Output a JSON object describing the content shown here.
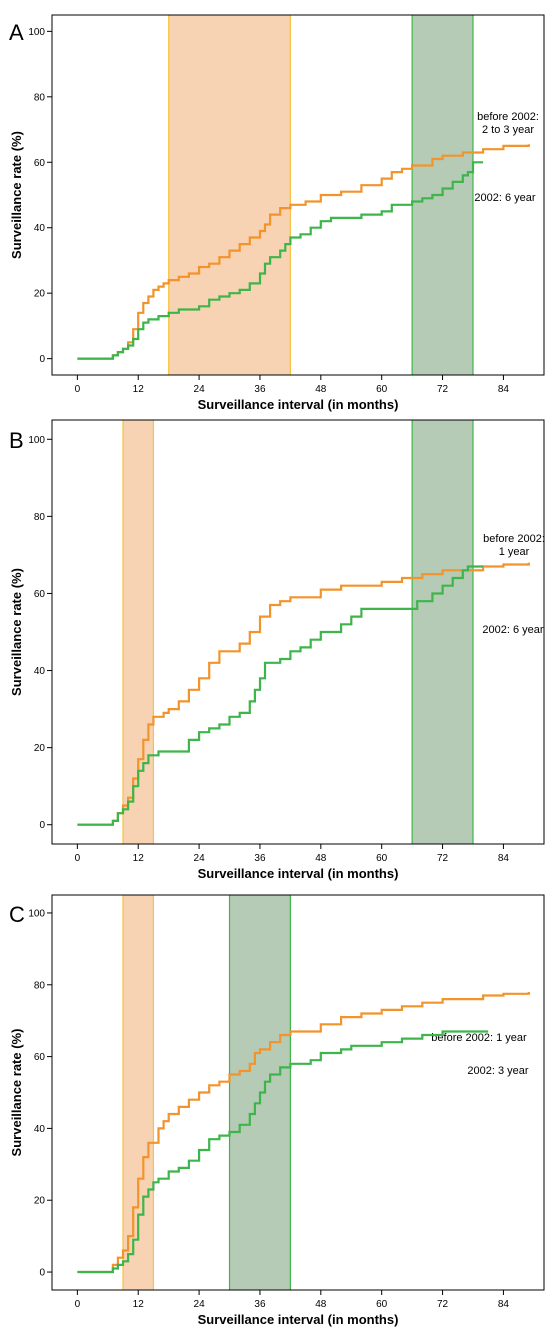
{
  "colors": {
    "orange_line": "#F2932B",
    "green_line": "#3DB54A",
    "orange_band_fill": "#F7D3B3",
    "orange_band_edge": "#F5C244",
    "green_band_fill": "#B5CBB6",
    "green_band_edge": "#3DB54A"
  },
  "chart_data": [
    {
      "type": "line",
      "panel": "A",
      "xlabel": "Surveillance interval (in months)",
      "ylabel": "Surveillance rate (%)",
      "xlim": [
        -5,
        92
      ],
      "ylim": [
        -5,
        105
      ],
      "xticks": [
        0,
        12,
        24,
        36,
        48,
        60,
        72,
        84
      ],
      "yticks": [
        0,
        20,
        40,
        60,
        80,
        100
      ],
      "bands": [
        {
          "color": "orange",
          "x": [
            18,
            42
          ]
        },
        {
          "color": "green",
          "x": [
            66,
            78
          ]
        }
      ],
      "series": [
        {
          "name": "before 2002: 2 to 3 year",
          "label_lines": [
            "before 2002:",
            "2 to 3 year"
          ],
          "color": "orange",
          "points": [
            [
              0,
              0
            ],
            [
              6,
              0
            ],
            [
              7,
              1
            ],
            [
              8,
              2
            ],
            [
              9,
              3
            ],
            [
              10,
              5
            ],
            [
              11,
              9
            ],
            [
              12,
              14
            ],
            [
              13,
              17
            ],
            [
              14,
              19
            ],
            [
              15,
              21
            ],
            [
              16,
              22
            ],
            [
              17,
              23
            ],
            [
              18,
              24
            ],
            [
              20,
              25
            ],
            [
              22,
              26
            ],
            [
              24,
              28
            ],
            [
              26,
              29
            ],
            [
              28,
              31
            ],
            [
              30,
              33
            ],
            [
              32,
              35
            ],
            [
              34,
              37
            ],
            [
              36,
              39
            ],
            [
              37,
              41
            ],
            [
              38,
              44
            ],
            [
              40,
              46
            ],
            [
              42,
              47
            ],
            [
              45,
              48
            ],
            [
              48,
              50
            ],
            [
              52,
              51
            ],
            [
              56,
              53
            ],
            [
              60,
              55
            ],
            [
              62,
              57
            ],
            [
              64,
              58
            ],
            [
              66,
              59
            ],
            [
              70,
              61
            ],
            [
              72,
              62
            ],
            [
              76,
              63
            ],
            [
              80,
              64
            ],
            [
              84,
              65
            ],
            [
              89,
              65.5
            ]
          ]
        },
        {
          "name": "2002: 6 year",
          "label_lines": [
            "2002: 6 year"
          ],
          "color": "green",
          "points": [
            [
              0,
              0
            ],
            [
              6,
              0
            ],
            [
              7,
              1
            ],
            [
              8,
              2
            ],
            [
              9,
              3
            ],
            [
              10,
              4
            ],
            [
              11,
              6
            ],
            [
              12,
              9
            ],
            [
              13,
              11
            ],
            [
              14,
              12
            ],
            [
              16,
              13
            ],
            [
              18,
              14
            ],
            [
              20,
              15
            ],
            [
              24,
              16
            ],
            [
              26,
              18
            ],
            [
              28,
              19
            ],
            [
              30,
              20
            ],
            [
              32,
              21
            ],
            [
              34,
              23
            ],
            [
              36,
              26
            ],
            [
              37,
              29
            ],
            [
              38,
              31
            ],
            [
              40,
              33
            ],
            [
              41,
              35
            ],
            [
              42,
              37
            ],
            [
              44,
              38
            ],
            [
              46,
              40
            ],
            [
              48,
              42
            ],
            [
              50,
              43
            ],
            [
              54,
              43
            ],
            [
              56,
              44
            ],
            [
              60,
              45
            ],
            [
              62,
              47
            ],
            [
              66,
              48
            ],
            [
              68,
              49
            ],
            [
              70,
              50
            ],
            [
              72,
              52
            ],
            [
              74,
              54
            ],
            [
              76,
              56
            ],
            [
              77,
              57
            ],
            [
              78,
              60
            ],
            [
              80,
              60
            ]
          ]
        }
      ]
    },
    {
      "type": "line",
      "panel": "B",
      "xlabel": "Surveillance interval (in months)",
      "ylabel": "Surveillance rate (%)",
      "xlim": [
        -5,
        92
      ],
      "ylim": [
        -5,
        105
      ],
      "xticks": [
        0,
        12,
        24,
        36,
        48,
        60,
        72,
        84
      ],
      "yticks": [
        0,
        20,
        40,
        60,
        80,
        100
      ],
      "bands": [
        {
          "color": "orange",
          "x": [
            9,
            15
          ]
        },
        {
          "color": "green",
          "x": [
            66,
            78
          ]
        }
      ],
      "series": [
        {
          "name": "before 2002: 1 year",
          "label_lines": [
            "before 2002:",
            "1 year"
          ],
          "color": "orange",
          "points": [
            [
              0,
              0
            ],
            [
              6,
              0
            ],
            [
              7,
              1
            ],
            [
              8,
              3
            ],
            [
              9,
              5
            ],
            [
              10,
              7
            ],
            [
              11,
              12
            ],
            [
              12,
              17
            ],
            [
              13,
              22
            ],
            [
              14,
              26
            ],
            [
              15,
              28
            ],
            [
              17,
              29
            ],
            [
              18,
              30
            ],
            [
              20,
              32
            ],
            [
              22,
              35
            ],
            [
              24,
              38
            ],
            [
              26,
              42
            ],
            [
              28,
              45
            ],
            [
              30,
              45
            ],
            [
              32,
              47
            ],
            [
              34,
              50
            ],
            [
              36,
              54
            ],
            [
              38,
              57
            ],
            [
              40,
              58
            ],
            [
              42,
              59
            ],
            [
              48,
              61
            ],
            [
              52,
              62
            ],
            [
              56,
              62
            ],
            [
              60,
              63
            ],
            [
              64,
              64
            ],
            [
              68,
              65
            ],
            [
              72,
              66
            ],
            [
              76,
              66
            ],
            [
              80,
              67
            ],
            [
              84,
              67.5
            ],
            [
              89,
              68
            ]
          ]
        },
        {
          "name": "2002: 6 year",
          "label_lines": [
            "2002: 6 year"
          ],
          "color": "green",
          "points": [
            [
              0,
              0
            ],
            [
              6,
              0
            ],
            [
              7,
              1
            ],
            [
              8,
              3
            ],
            [
              9,
              4
            ],
            [
              10,
              6
            ],
            [
              11,
              10
            ],
            [
              12,
              14
            ],
            [
              13,
              16
            ],
            [
              14,
              18
            ],
            [
              16,
              19
            ],
            [
              20,
              19
            ],
            [
              22,
              22
            ],
            [
              24,
              24
            ],
            [
              26,
              25
            ],
            [
              28,
              26
            ],
            [
              30,
              28
            ],
            [
              32,
              29
            ],
            [
              34,
              32
            ],
            [
              35,
              35
            ],
            [
              36,
              38
            ],
            [
              37,
              42
            ],
            [
              40,
              43
            ],
            [
              42,
              45
            ],
            [
              44,
              46
            ],
            [
              46,
              48
            ],
            [
              48,
              50
            ],
            [
              52,
              52
            ],
            [
              54,
              54
            ],
            [
              56,
              56
            ],
            [
              60,
              56
            ],
            [
              66,
              56
            ],
            [
              67,
              58
            ],
            [
              70,
              60
            ],
            [
              72,
              62
            ],
            [
              74,
              64
            ],
            [
              76,
              66
            ],
            [
              77,
              67
            ],
            [
              80,
              67
            ]
          ]
        }
      ]
    },
    {
      "type": "line",
      "panel": "C",
      "xlabel": "Surveillance interval (in months)",
      "ylabel": "Surveillance rate (%)",
      "xlim": [
        -5,
        92
      ],
      "ylim": [
        -5,
        105
      ],
      "xticks": [
        0,
        12,
        24,
        36,
        48,
        60,
        72,
        84
      ],
      "yticks": [
        0,
        20,
        40,
        60,
        80,
        100
      ],
      "bands": [
        {
          "color": "orange",
          "x": [
            9,
            15
          ]
        },
        {
          "color": "green",
          "x": [
            30,
            42
          ]
        }
      ],
      "series": [
        {
          "name": "before 2002: 1 year",
          "label_lines": [
            "before 2002: 1 year"
          ],
          "color": "orange",
          "points": [
            [
              0,
              0
            ],
            [
              6,
              0
            ],
            [
              7,
              2
            ],
            [
              8,
              4
            ],
            [
              9,
              6
            ],
            [
              10,
              10
            ],
            [
              11,
              18
            ],
            [
              12,
              26
            ],
            [
              13,
              32
            ],
            [
              14,
              36
            ],
            [
              16,
              40
            ],
            [
              17,
              42
            ],
            [
              18,
              44
            ],
            [
              20,
              46
            ],
            [
              22,
              48
            ],
            [
              24,
              50
            ],
            [
              26,
              52
            ],
            [
              28,
              53
            ],
            [
              30,
              55
            ],
            [
              32,
              56
            ],
            [
              34,
              58
            ],
            [
              35,
              61
            ],
            [
              36,
              62
            ],
            [
              38,
              64
            ],
            [
              40,
              66
            ],
            [
              42,
              67
            ],
            [
              44,
              67
            ],
            [
              48,
              69
            ],
            [
              52,
              71
            ],
            [
              56,
              72
            ],
            [
              60,
              73
            ],
            [
              64,
              74
            ],
            [
              68,
              75
            ],
            [
              72,
              76
            ],
            [
              76,
              76
            ],
            [
              80,
              77
            ],
            [
              84,
              77.5
            ],
            [
              89,
              78
            ]
          ]
        },
        {
          "name": "2002: 3 year",
          "label_lines": [
            "2002: 3 year"
          ],
          "color": "green",
          "points": [
            [
              0,
              0
            ],
            [
              6,
              0
            ],
            [
              7,
              1
            ],
            [
              8,
              2
            ],
            [
              9,
              3
            ],
            [
              10,
              5
            ],
            [
              11,
              9
            ],
            [
              12,
              16
            ],
            [
              13,
              21
            ],
            [
              14,
              23
            ],
            [
              15,
              25
            ],
            [
              16,
              26
            ],
            [
              18,
              28
            ],
            [
              20,
              29
            ],
            [
              22,
              31
            ],
            [
              24,
              34
            ],
            [
              26,
              37
            ],
            [
              28,
              38
            ],
            [
              30,
              39
            ],
            [
              32,
              41
            ],
            [
              34,
              44
            ],
            [
              35,
              47
            ],
            [
              36,
              50
            ],
            [
              37,
              53
            ],
            [
              38,
              55
            ],
            [
              40,
              57
            ],
            [
              42,
              58
            ],
            [
              46,
              59
            ],
            [
              48,
              61
            ],
            [
              52,
              62
            ],
            [
              54,
              63
            ],
            [
              60,
              64
            ],
            [
              64,
              65
            ],
            [
              68,
              66
            ],
            [
              72,
              67
            ],
            [
              76,
              67
            ],
            [
              81,
              67
            ]
          ]
        }
      ]
    }
  ]
}
